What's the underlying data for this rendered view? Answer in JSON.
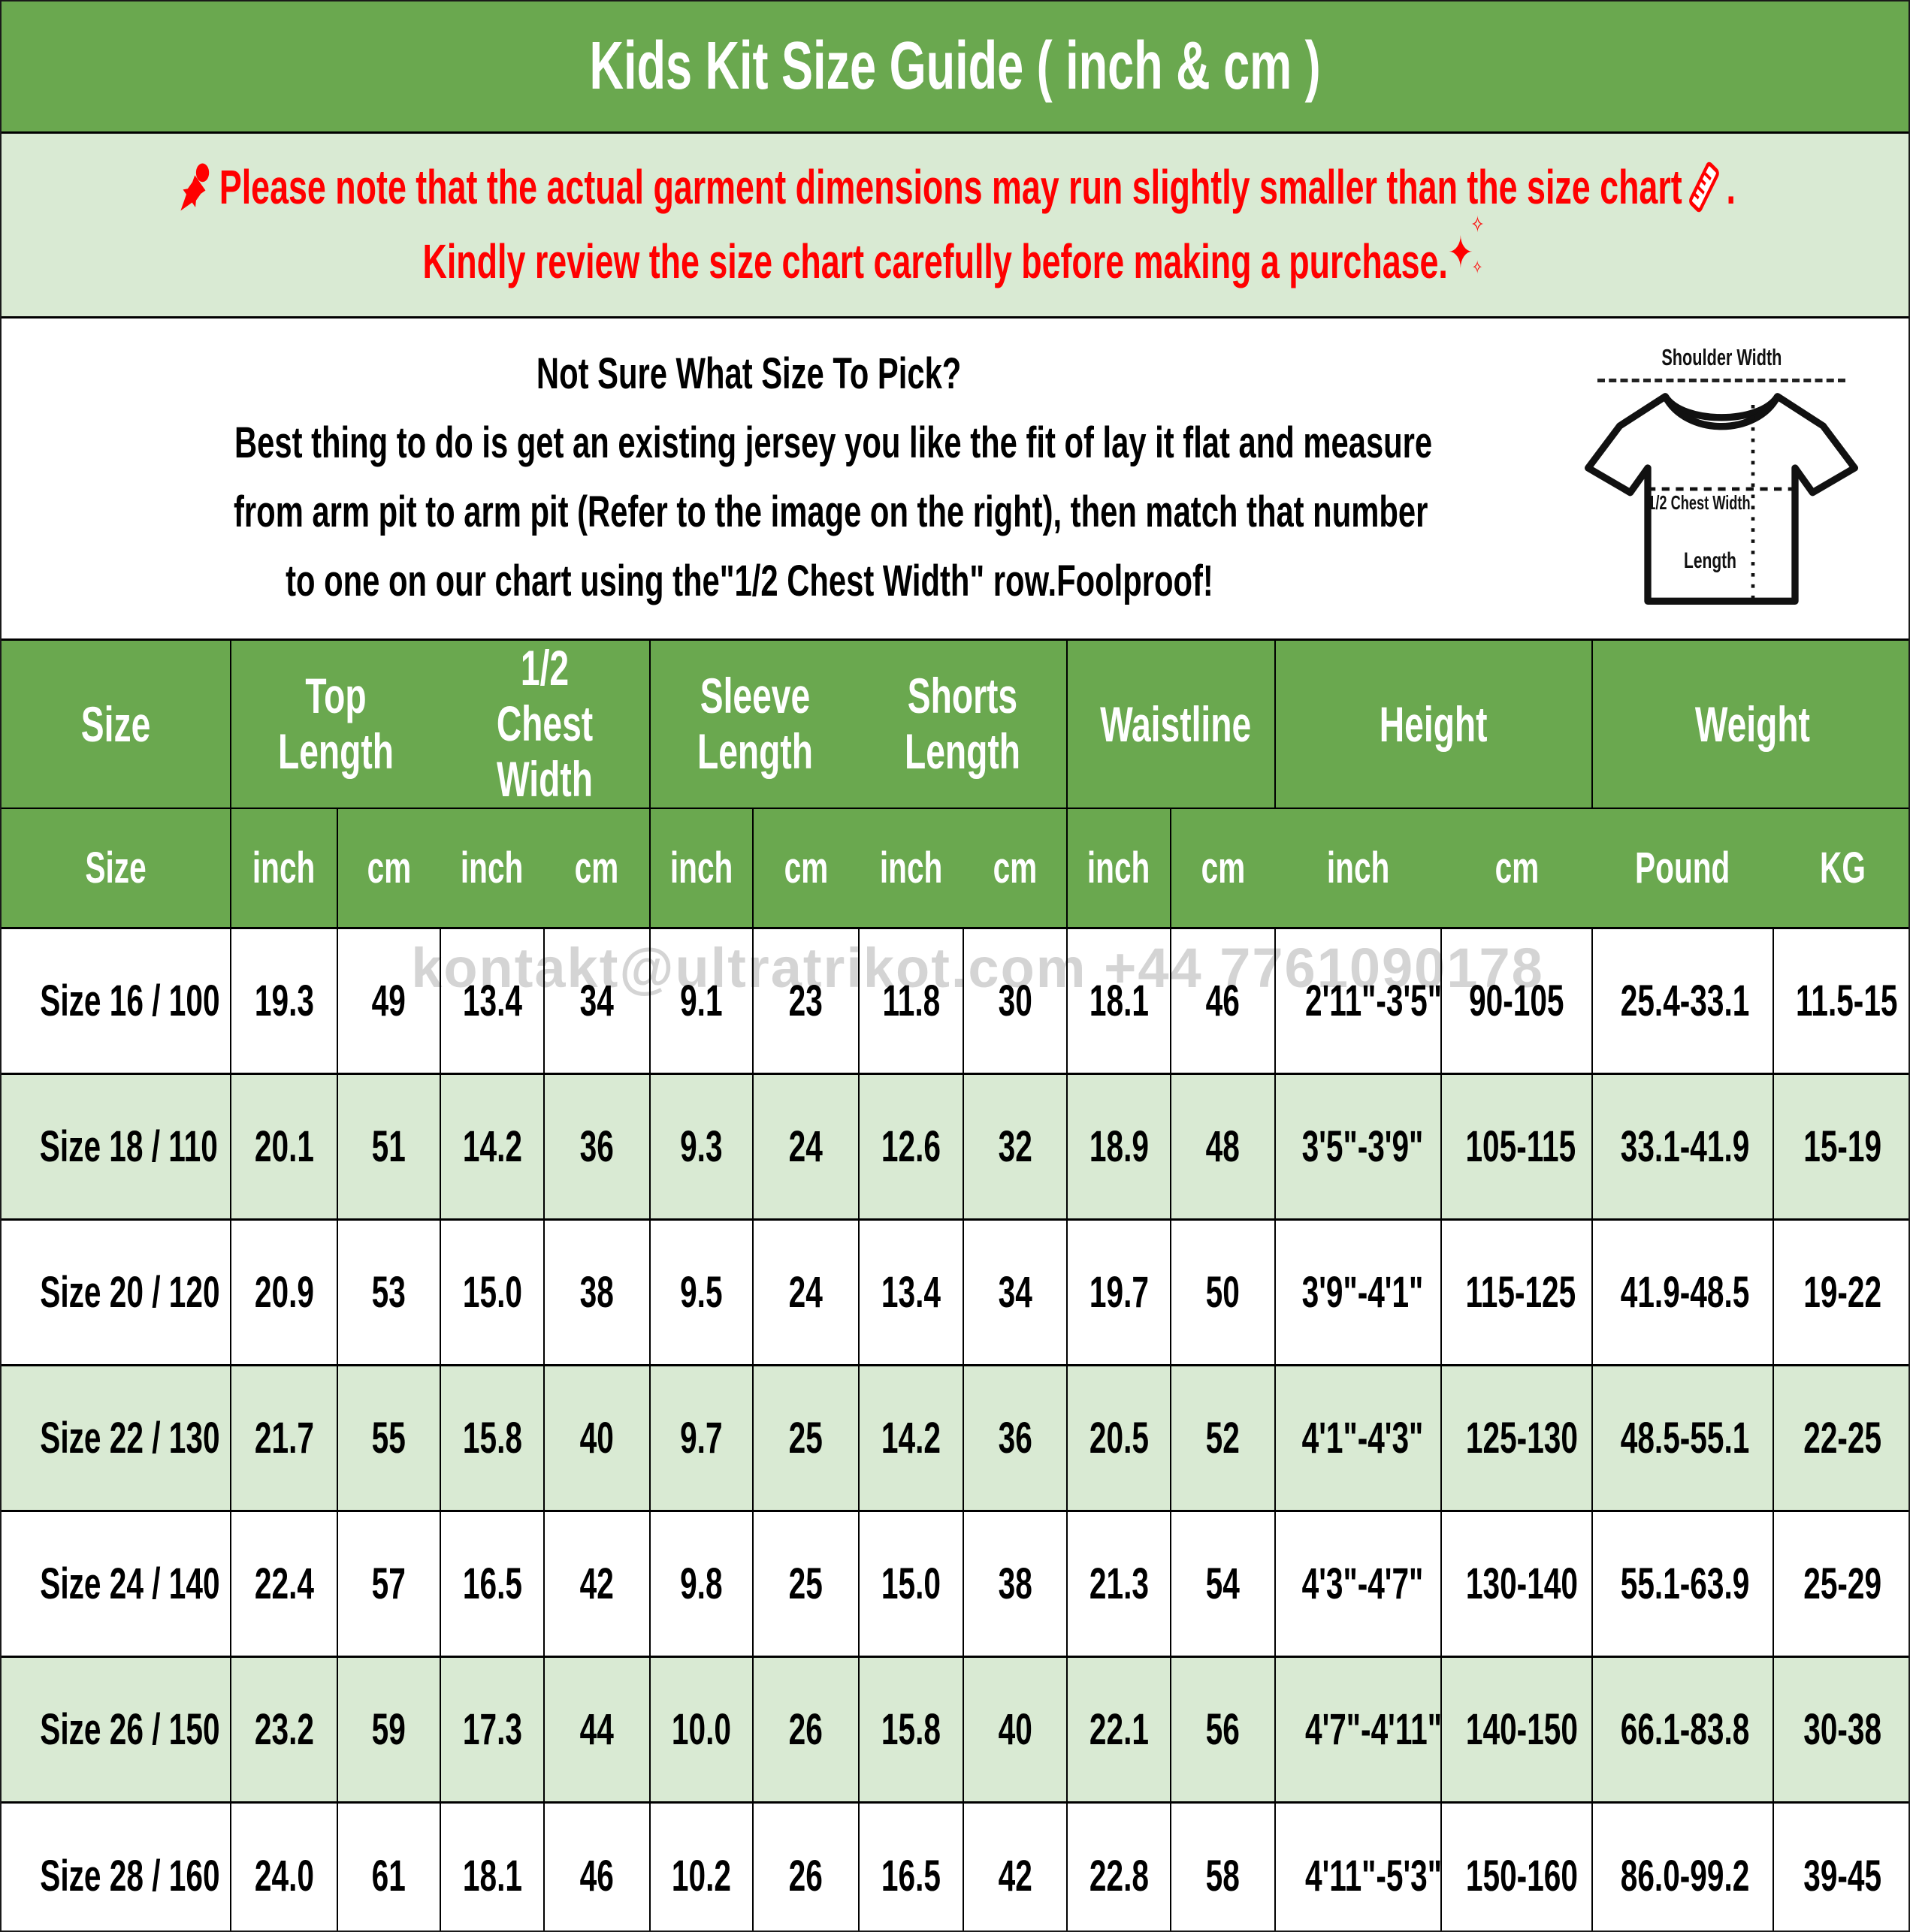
{
  "title": "Kids Kit Size Guide ( inch & cm )",
  "notice": {
    "line1_pre": "Please note that the actual garment dimensions may run slightly smaller than the size chart",
    "line1_post": ".",
    "line2": "Kindly review the size chart carefully before making a purchase.",
    "icons": {
      "pushpin": "pushpin-icon",
      "ruler": "ruler-icon",
      "sparkle_big": "✦",
      "sparkle_small": "✧"
    }
  },
  "howto": {
    "heading": "Not Sure What Size To Pick?",
    "line2": "Best thing to do is get an existing jersey you like the fit of lay it flat and measure",
    "line3": "from arm pit to arm pit (Refer to the image on the right), then match that number",
    "line4": "to one on our chart using the\"1/2 Chest Width\" row.Foolproof!"
  },
  "diagram": {
    "shoulder_label": "Shoulder Width",
    "chest_label": "1/2 Chest Width",
    "length_label": "Length"
  },
  "watermark": "kontakt@ultratrikot.com  +44 7761090178",
  "table": {
    "groups": [
      {
        "label": "Size",
        "span": 1
      },
      {
        "label": "Top Length",
        "span": 2
      },
      {
        "label": "1/2 Chest\nWidth",
        "span": 2
      },
      {
        "label": "Sleeve\nLength",
        "span": 2
      },
      {
        "label": "Shorts\nLength",
        "span": 2
      },
      {
        "label": "Waistline",
        "span": 2
      },
      {
        "label": "Height",
        "span": 2
      },
      {
        "label": "Weight",
        "span": 2
      }
    ],
    "units": [
      "Size",
      "inch",
      "cm",
      "inch",
      "cm",
      "inch",
      "cm",
      "inch",
      "cm",
      "inch",
      "cm",
      "inch",
      "cm",
      "Pound",
      "KG"
    ],
    "rows": [
      [
        "Size 16 / 100",
        "19.3",
        "49",
        "13.4",
        "34",
        "9.1",
        "23",
        "11.8",
        "30",
        "18.1",
        "46",
        "2'11\"-3'5\"",
        "90-105",
        "25.4-33.1",
        "11.5-15"
      ],
      [
        "Size 18 / 110",
        "20.1",
        "51",
        "14.2",
        "36",
        "9.3",
        "24",
        "12.6",
        "32",
        "18.9",
        "48",
        "3'5\"-3'9\"",
        "105-115",
        "33.1-41.9",
        "15-19"
      ],
      [
        "Size 20 / 120",
        "20.9",
        "53",
        "15.0",
        "38",
        "9.5",
        "24",
        "13.4",
        "34",
        "19.7",
        "50",
        "3'9\"-4'1\"",
        "115-125",
        "41.9-48.5",
        "19-22"
      ],
      [
        "Size 22 / 130",
        "21.7",
        "55",
        "15.8",
        "40",
        "9.7",
        "25",
        "14.2",
        "36",
        "20.5",
        "52",
        "4'1\"-4'3\"",
        "125-130",
        "48.5-55.1",
        "22-25"
      ],
      [
        "Size 24 / 140",
        "22.4",
        "57",
        "16.5",
        "42",
        "9.8",
        "25",
        "15.0",
        "38",
        "21.3",
        "54",
        "4'3\"-4'7\"",
        "130-140",
        "55.1-63.9",
        "25-29"
      ],
      [
        "Size 26 / 150",
        "23.2",
        "59",
        "17.3",
        "44",
        "10.0",
        "26",
        "15.8",
        "40",
        "22.1",
        "56",
        "4'7\"-4'11\"",
        "140-150",
        "66.1-83.8",
        "30-38"
      ],
      [
        "Size 28 / 160",
        "24.0",
        "61",
        "18.1",
        "46",
        "10.2",
        "26",
        "16.5",
        "42",
        "22.8",
        "58",
        "4'11\"-5'3\"",
        "150-160",
        "86.0-99.2",
        "39-45"
      ]
    ]
  },
  "colors": {
    "header_green": "#6aa84f",
    "light_green": "#d9ead3",
    "notice_red": "#ff0000",
    "text_black": "#000000",
    "watermark_gray": "#d4d4d4"
  }
}
